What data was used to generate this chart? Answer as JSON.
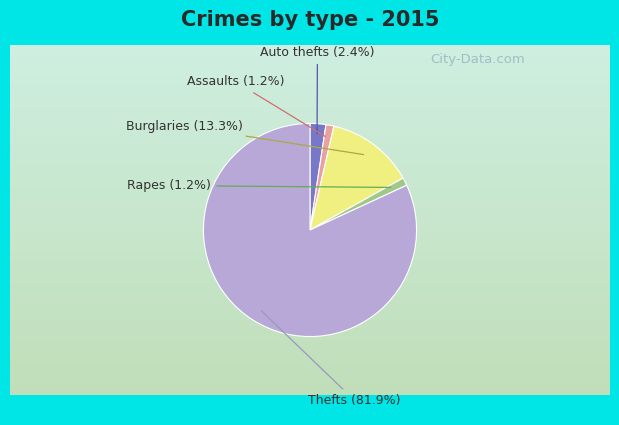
{
  "title": "Crimes by type - 2015",
  "slices": [
    {
      "label": "Auto thefts",
      "pct": 2.4,
      "color": "#7878c8"
    },
    {
      "label": "Assaults",
      "pct": 1.2,
      "color": "#e8a0a0"
    },
    {
      "label": "Burglaries",
      "pct": 13.3,
      "color": "#f0f080"
    },
    {
      "label": "Rapes",
      "pct": 1.2,
      "color": "#a0c888"
    },
    {
      "label": "Thefts",
      "pct": 81.9,
      "color": "#b8a8d8"
    }
  ],
  "bg_cyan": "#00e5e5",
  "bg_grad_top": "#ceeee0",
  "bg_grad_bottom": "#c0deb8",
  "title_color": "#2a2a2a",
  "label_color": "#333333",
  "watermark": "City-Data.com",
  "title_fontsize": 15,
  "label_fontsize": 9,
  "cyan_bar_height": 0.125
}
